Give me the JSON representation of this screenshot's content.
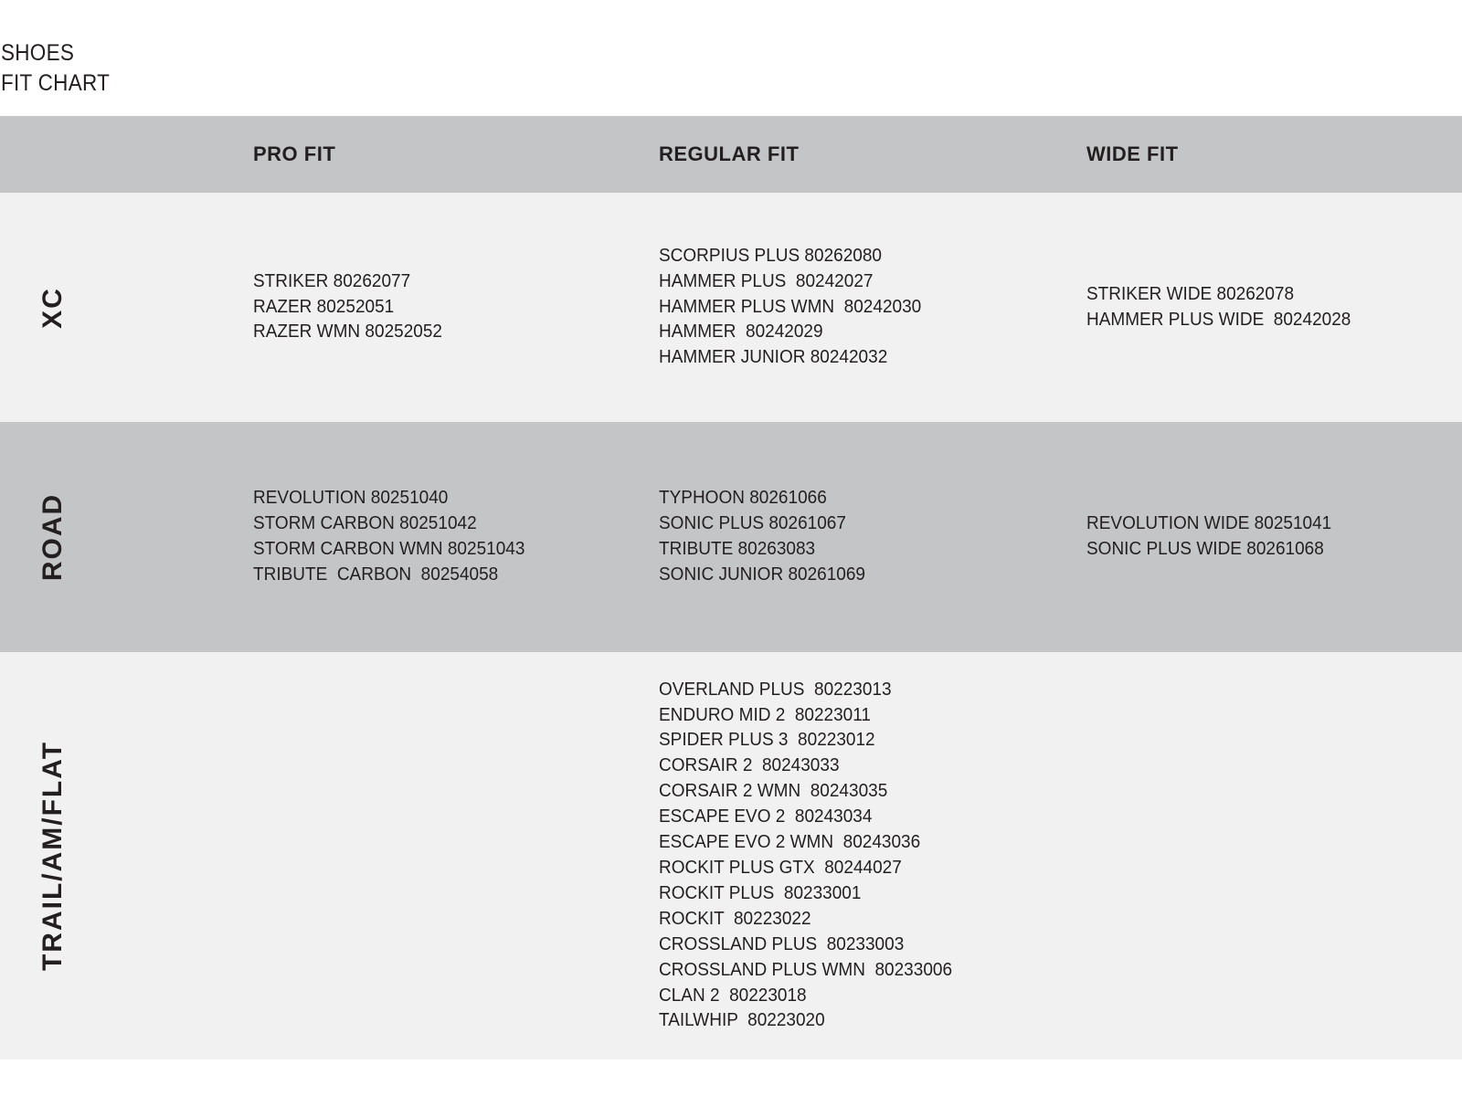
{
  "title": {
    "line1": "SHOES",
    "line2": "FIT CHART"
  },
  "columns": [
    "PRO FIT",
    "REGULAR FIT",
    "WIDE FIT"
  ],
  "colors": {
    "header_bg": "#c4c5c7",
    "light_row_bg": "#f1f1f1",
    "dark_row_bg": "#c4c5c7",
    "text": "#231f20"
  },
  "rows": [
    {
      "label": "XC",
      "pro": [
        "STRIKER 80262077",
        "RAZER 80252051",
        "RAZER WMN 80252052"
      ],
      "regular": [
        "SCORPIUS PLUS 80262080",
        "HAMMER PLUS  80242027",
        "HAMMER PLUS WMN  80242030",
        "HAMMER  80242029",
        "HAMMER JUNIOR 80242032"
      ],
      "wide": [
        "STRIKER WIDE 80262078",
        "HAMMER PLUS WIDE  80242028"
      ]
    },
    {
      "label": "ROAD",
      "pro": [
        "REVOLUTION 80251040",
        "STORM CARBON 80251042",
        "STORM CARBON WMN 80251043",
        "TRIBUTE  CARBON  80254058"
      ],
      "regular": [
        "TYPHOON 80261066",
        "SONIC PLUS 80261067",
        "TRIBUTE 80263083",
        "SONIC JUNIOR 80261069"
      ],
      "wide": [
        "REVOLUTION WIDE 80251041",
        "SONIC PLUS WIDE 80261068"
      ]
    },
    {
      "label": "TRAIL/AM/FLAT",
      "pro": [],
      "regular": [
        "OVERLAND PLUS  80223013",
        "ENDURO MID 2  80223011",
        "SPIDER PLUS 3  80223012",
        "CORSAIR 2  80243033",
        "CORSAIR 2 WMN  80243035",
        "ESCAPE EVO 2  80243034",
        "ESCAPE EVO 2 WMN  80243036",
        "ROCKIT PLUS GTX  80244027",
        "ROCKIT PLUS  80233001",
        "ROCKIT  80223022",
        "CROSSLAND PLUS  80233003",
        "CROSSLAND PLUS WMN  80233006",
        "CLAN 2  80223018",
        "TAILWHIP  80223020"
      ],
      "wide": []
    }
  ]
}
